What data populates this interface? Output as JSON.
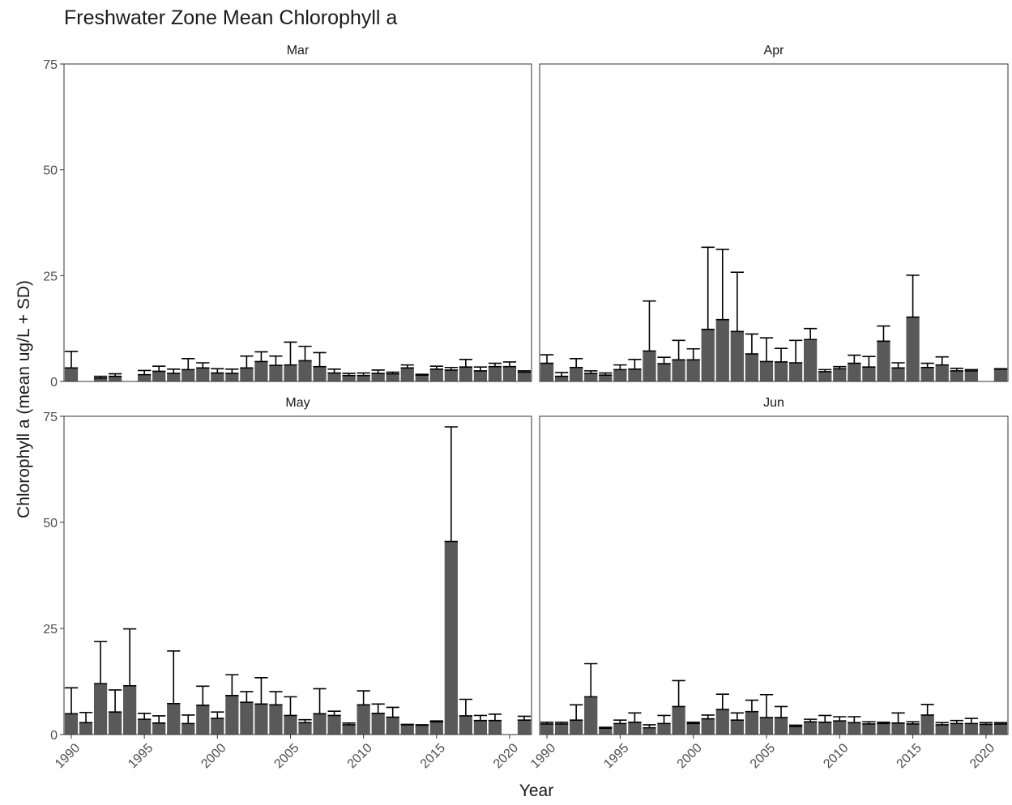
{
  "chart_data": {
    "type": "bar",
    "title": "Freshwater Zone Mean Chlorophyll a",
    "xlabel": "Year",
    "ylabel": "Chlorophyll a (mean ug/L + SD)",
    "ylim": [
      0,
      75
    ],
    "yticks": [
      0,
      25,
      50,
      75
    ],
    "xlim": [
      1989.5,
      2021.5
    ],
    "xticks": [
      1990,
      1995,
      2000,
      2005,
      2010,
      2015,
      2020
    ],
    "grid": false,
    "bar_color": "#595959",
    "panels": [
      {
        "name": "Mar",
        "bars": [
          {
            "year": 1990,
            "mean": 3.2,
            "sd": 3.9
          },
          {
            "year": 1992,
            "mean": 0.8,
            "sd": 0.4
          },
          {
            "year": 1993,
            "mean": 1.2,
            "sd": 0.6
          },
          {
            "year": 1995,
            "mean": 1.6,
            "sd": 1.0
          },
          {
            "year": 1996,
            "mean": 2.4,
            "sd": 1.2
          },
          {
            "year": 1997,
            "mean": 1.9,
            "sd": 1.0
          },
          {
            "year": 1998,
            "mean": 2.8,
            "sd": 2.6
          },
          {
            "year": 1999,
            "mean": 3.2,
            "sd": 1.2
          },
          {
            "year": 2000,
            "mean": 2.0,
            "sd": 1.0
          },
          {
            "year": 2001,
            "mean": 1.9,
            "sd": 1.0
          },
          {
            "year": 2002,
            "mean": 3.2,
            "sd": 2.8
          },
          {
            "year": 2003,
            "mean": 4.7,
            "sd": 2.3
          },
          {
            "year": 2004,
            "mean": 3.8,
            "sd": 2.2
          },
          {
            "year": 2005,
            "mean": 3.9,
            "sd": 5.4
          },
          {
            "year": 2006,
            "mean": 4.9,
            "sd": 3.4
          },
          {
            "year": 2007,
            "mean": 3.5,
            "sd": 3.3
          },
          {
            "year": 2008,
            "mean": 2.0,
            "sd": 0.9
          },
          {
            "year": 2009,
            "mean": 1.4,
            "sd": 0.5
          },
          {
            "year": 2010,
            "mean": 1.4,
            "sd": 0.6
          },
          {
            "year": 2011,
            "mean": 1.9,
            "sd": 0.8
          },
          {
            "year": 2012,
            "mean": 1.8,
            "sd": 0.4
          },
          {
            "year": 2013,
            "mean": 3.2,
            "sd": 0.7
          },
          {
            "year": 2014,
            "mean": 1.5,
            "sd": 0.2
          },
          {
            "year": 2015,
            "mean": 2.9,
            "sd": 0.7
          },
          {
            "year": 2016,
            "mean": 2.7,
            "sd": 0.6
          },
          {
            "year": 2017,
            "mean": 3.4,
            "sd": 1.8
          },
          {
            "year": 2018,
            "mean": 2.5,
            "sd": 0.9
          },
          {
            "year": 2019,
            "mean": 3.5,
            "sd": 0.8
          },
          {
            "year": 2020,
            "mean": 3.5,
            "sd": 1.1
          },
          {
            "year": 2021,
            "mean": 2.2,
            "sd": 0.3
          }
        ]
      },
      {
        "name": "Apr",
        "bars": [
          {
            "year": 1990,
            "mean": 4.3,
            "sd": 2.0
          },
          {
            "year": 1991,
            "mean": 1.2,
            "sd": 0.9
          },
          {
            "year": 1992,
            "mean": 3.3,
            "sd": 2.1
          },
          {
            "year": 1993,
            "mean": 1.9,
            "sd": 0.6
          },
          {
            "year": 1994,
            "mean": 1.5,
            "sd": 0.5
          },
          {
            "year": 1995,
            "mean": 2.8,
            "sd": 1.1
          },
          {
            "year": 1996,
            "mean": 2.9,
            "sd": 2.3
          },
          {
            "year": 1997,
            "mean": 7.2,
            "sd": 11.8
          },
          {
            "year": 1998,
            "mean": 4.2,
            "sd": 1.5
          },
          {
            "year": 1999,
            "mean": 5.1,
            "sd": 4.6
          },
          {
            "year": 2000,
            "mean": 5.1,
            "sd": 2.6
          },
          {
            "year": 2001,
            "mean": 12.3,
            "sd": 19.4
          },
          {
            "year": 2002,
            "mean": 14.6,
            "sd": 16.6
          },
          {
            "year": 2003,
            "mean": 11.8,
            "sd": 14.0
          },
          {
            "year": 2004,
            "mean": 6.5,
            "sd": 4.7
          },
          {
            "year": 2005,
            "mean": 4.7,
            "sd": 5.6
          },
          {
            "year": 2006,
            "mean": 4.6,
            "sd": 3.2
          },
          {
            "year": 2007,
            "mean": 4.4,
            "sd": 5.3
          },
          {
            "year": 2008,
            "mean": 9.9,
            "sd": 2.6
          },
          {
            "year": 2009,
            "mean": 2.3,
            "sd": 0.5
          },
          {
            "year": 2010,
            "mean": 3.0,
            "sd": 0.5
          },
          {
            "year": 2011,
            "mean": 4.3,
            "sd": 1.9
          },
          {
            "year": 2012,
            "mean": 3.4,
            "sd": 2.5
          },
          {
            "year": 2013,
            "mean": 9.5,
            "sd": 3.6
          },
          {
            "year": 2014,
            "mean": 3.2,
            "sd": 1.2
          },
          {
            "year": 2015,
            "mean": 15.2,
            "sd": 9.9
          },
          {
            "year": 2016,
            "mean": 3.3,
            "sd": 1.0
          },
          {
            "year": 2017,
            "mean": 3.9,
            "sd": 1.9
          },
          {
            "year": 2018,
            "mean": 2.5,
            "sd": 0.6
          },
          {
            "year": 2019,
            "mean": 2.5,
            "sd": 0.3
          },
          {
            "year": 2021,
            "mean": 2.9,
            "sd": 0.1
          }
        ]
      },
      {
        "name": "May",
        "bars": [
          {
            "year": 1990,
            "mean": 4.9,
            "sd": 6.1
          },
          {
            "year": 1991,
            "mean": 2.8,
            "sd": 2.4
          },
          {
            "year": 1992,
            "mean": 12.0,
            "sd": 9.9
          },
          {
            "year": 1993,
            "mean": 5.3,
            "sd": 5.2
          },
          {
            "year": 1994,
            "mean": 11.5,
            "sd": 13.4
          },
          {
            "year": 1995,
            "mean": 3.6,
            "sd": 1.4
          },
          {
            "year": 1996,
            "mean": 2.7,
            "sd": 1.7
          },
          {
            "year": 1997,
            "mean": 7.3,
            "sd": 12.4
          },
          {
            "year": 1998,
            "mean": 2.6,
            "sd": 2.0
          },
          {
            "year": 1999,
            "mean": 6.9,
            "sd": 4.5
          },
          {
            "year": 2000,
            "mean": 3.8,
            "sd": 1.5
          },
          {
            "year": 2001,
            "mean": 9.2,
            "sd": 4.9
          },
          {
            "year": 2002,
            "mean": 7.6,
            "sd": 2.5
          },
          {
            "year": 2003,
            "mean": 7.2,
            "sd": 6.2
          },
          {
            "year": 2004,
            "mean": 7.0,
            "sd": 3.1
          },
          {
            "year": 2005,
            "mean": 4.5,
            "sd": 4.4
          },
          {
            "year": 2006,
            "mean": 2.8,
            "sd": 0.7
          },
          {
            "year": 2007,
            "mean": 4.9,
            "sd": 5.9
          },
          {
            "year": 2008,
            "mean": 4.5,
            "sd": 1.0
          },
          {
            "year": 2009,
            "mean": 2.3,
            "sd": 0.4
          },
          {
            "year": 2010,
            "mean": 7.0,
            "sd": 3.3
          },
          {
            "year": 2011,
            "mean": 5.0,
            "sd": 2.2
          },
          {
            "year": 2012,
            "mean": 4.1,
            "sd": 2.3
          },
          {
            "year": 2013,
            "mean": 2.3,
            "sd": 0.1
          },
          {
            "year": 2014,
            "mean": 2.2,
            "sd": 0.1
          },
          {
            "year": 2015,
            "mean": 3.0,
            "sd": 0.2
          },
          {
            "year": 2016,
            "mean": 45.5,
            "sd": 27.0
          },
          {
            "year": 2017,
            "mean": 4.4,
            "sd": 3.9
          },
          {
            "year": 2018,
            "mean": 3.3,
            "sd": 1.2
          },
          {
            "year": 2019,
            "mean": 3.3,
            "sd": 1.5
          },
          {
            "year": 2021,
            "mean": 3.4,
            "sd": 0.9
          }
        ]
      },
      {
        "name": "Jun",
        "bars": [
          {
            "year": 1990,
            "mean": 2.5,
            "sd": 0.4
          },
          {
            "year": 1991,
            "mean": 2.5,
            "sd": 0.4
          },
          {
            "year": 1992,
            "mean": 3.4,
            "sd": 3.6
          },
          {
            "year": 1993,
            "mean": 8.9,
            "sd": 7.8
          },
          {
            "year": 1994,
            "mean": 1.5,
            "sd": 0.2
          },
          {
            "year": 1995,
            "mean": 2.6,
            "sd": 0.8
          },
          {
            "year": 1996,
            "mean": 2.9,
            "sd": 2.2
          },
          {
            "year": 1997,
            "mean": 1.6,
            "sd": 0.7
          },
          {
            "year": 1998,
            "mean": 2.6,
            "sd": 1.9
          },
          {
            "year": 1999,
            "mean": 6.6,
            "sd": 6.1
          },
          {
            "year": 2000,
            "mean": 2.6,
            "sd": 0.3
          },
          {
            "year": 2001,
            "mean": 3.7,
            "sd": 0.9
          },
          {
            "year": 2002,
            "mean": 5.9,
            "sd": 3.6
          },
          {
            "year": 2003,
            "mean": 3.4,
            "sd": 1.7
          },
          {
            "year": 2004,
            "mean": 5.4,
            "sd": 2.7
          },
          {
            "year": 2005,
            "mean": 4.0,
            "sd": 5.4
          },
          {
            "year": 2006,
            "mean": 4.0,
            "sd": 2.6
          },
          {
            "year": 2007,
            "mean": 1.9,
            "sd": 0.3
          },
          {
            "year": 2008,
            "mean": 3.0,
            "sd": 0.6
          },
          {
            "year": 2009,
            "mean": 2.9,
            "sd": 1.6
          },
          {
            "year": 2010,
            "mean": 3.2,
            "sd": 1.0
          },
          {
            "year": 2011,
            "mean": 2.8,
            "sd": 1.4
          },
          {
            "year": 2012,
            "mean": 2.5,
            "sd": 0.5
          },
          {
            "year": 2013,
            "mean": 2.6,
            "sd": 0.3
          },
          {
            "year": 2014,
            "mean": 2.7,
            "sd": 2.4
          },
          {
            "year": 2015,
            "mean": 2.5,
            "sd": 0.5
          },
          {
            "year": 2016,
            "mean": 4.6,
            "sd": 2.5
          },
          {
            "year": 2017,
            "mean": 2.3,
            "sd": 0.5
          },
          {
            "year": 2018,
            "mean": 2.6,
            "sd": 0.7
          },
          {
            "year": 2019,
            "mean": 2.6,
            "sd": 1.2
          },
          {
            "year": 2020,
            "mean": 2.4,
            "sd": 0.4
          },
          {
            "year": 2021,
            "mean": 2.5,
            "sd": 0.3
          }
        ]
      }
    ]
  }
}
